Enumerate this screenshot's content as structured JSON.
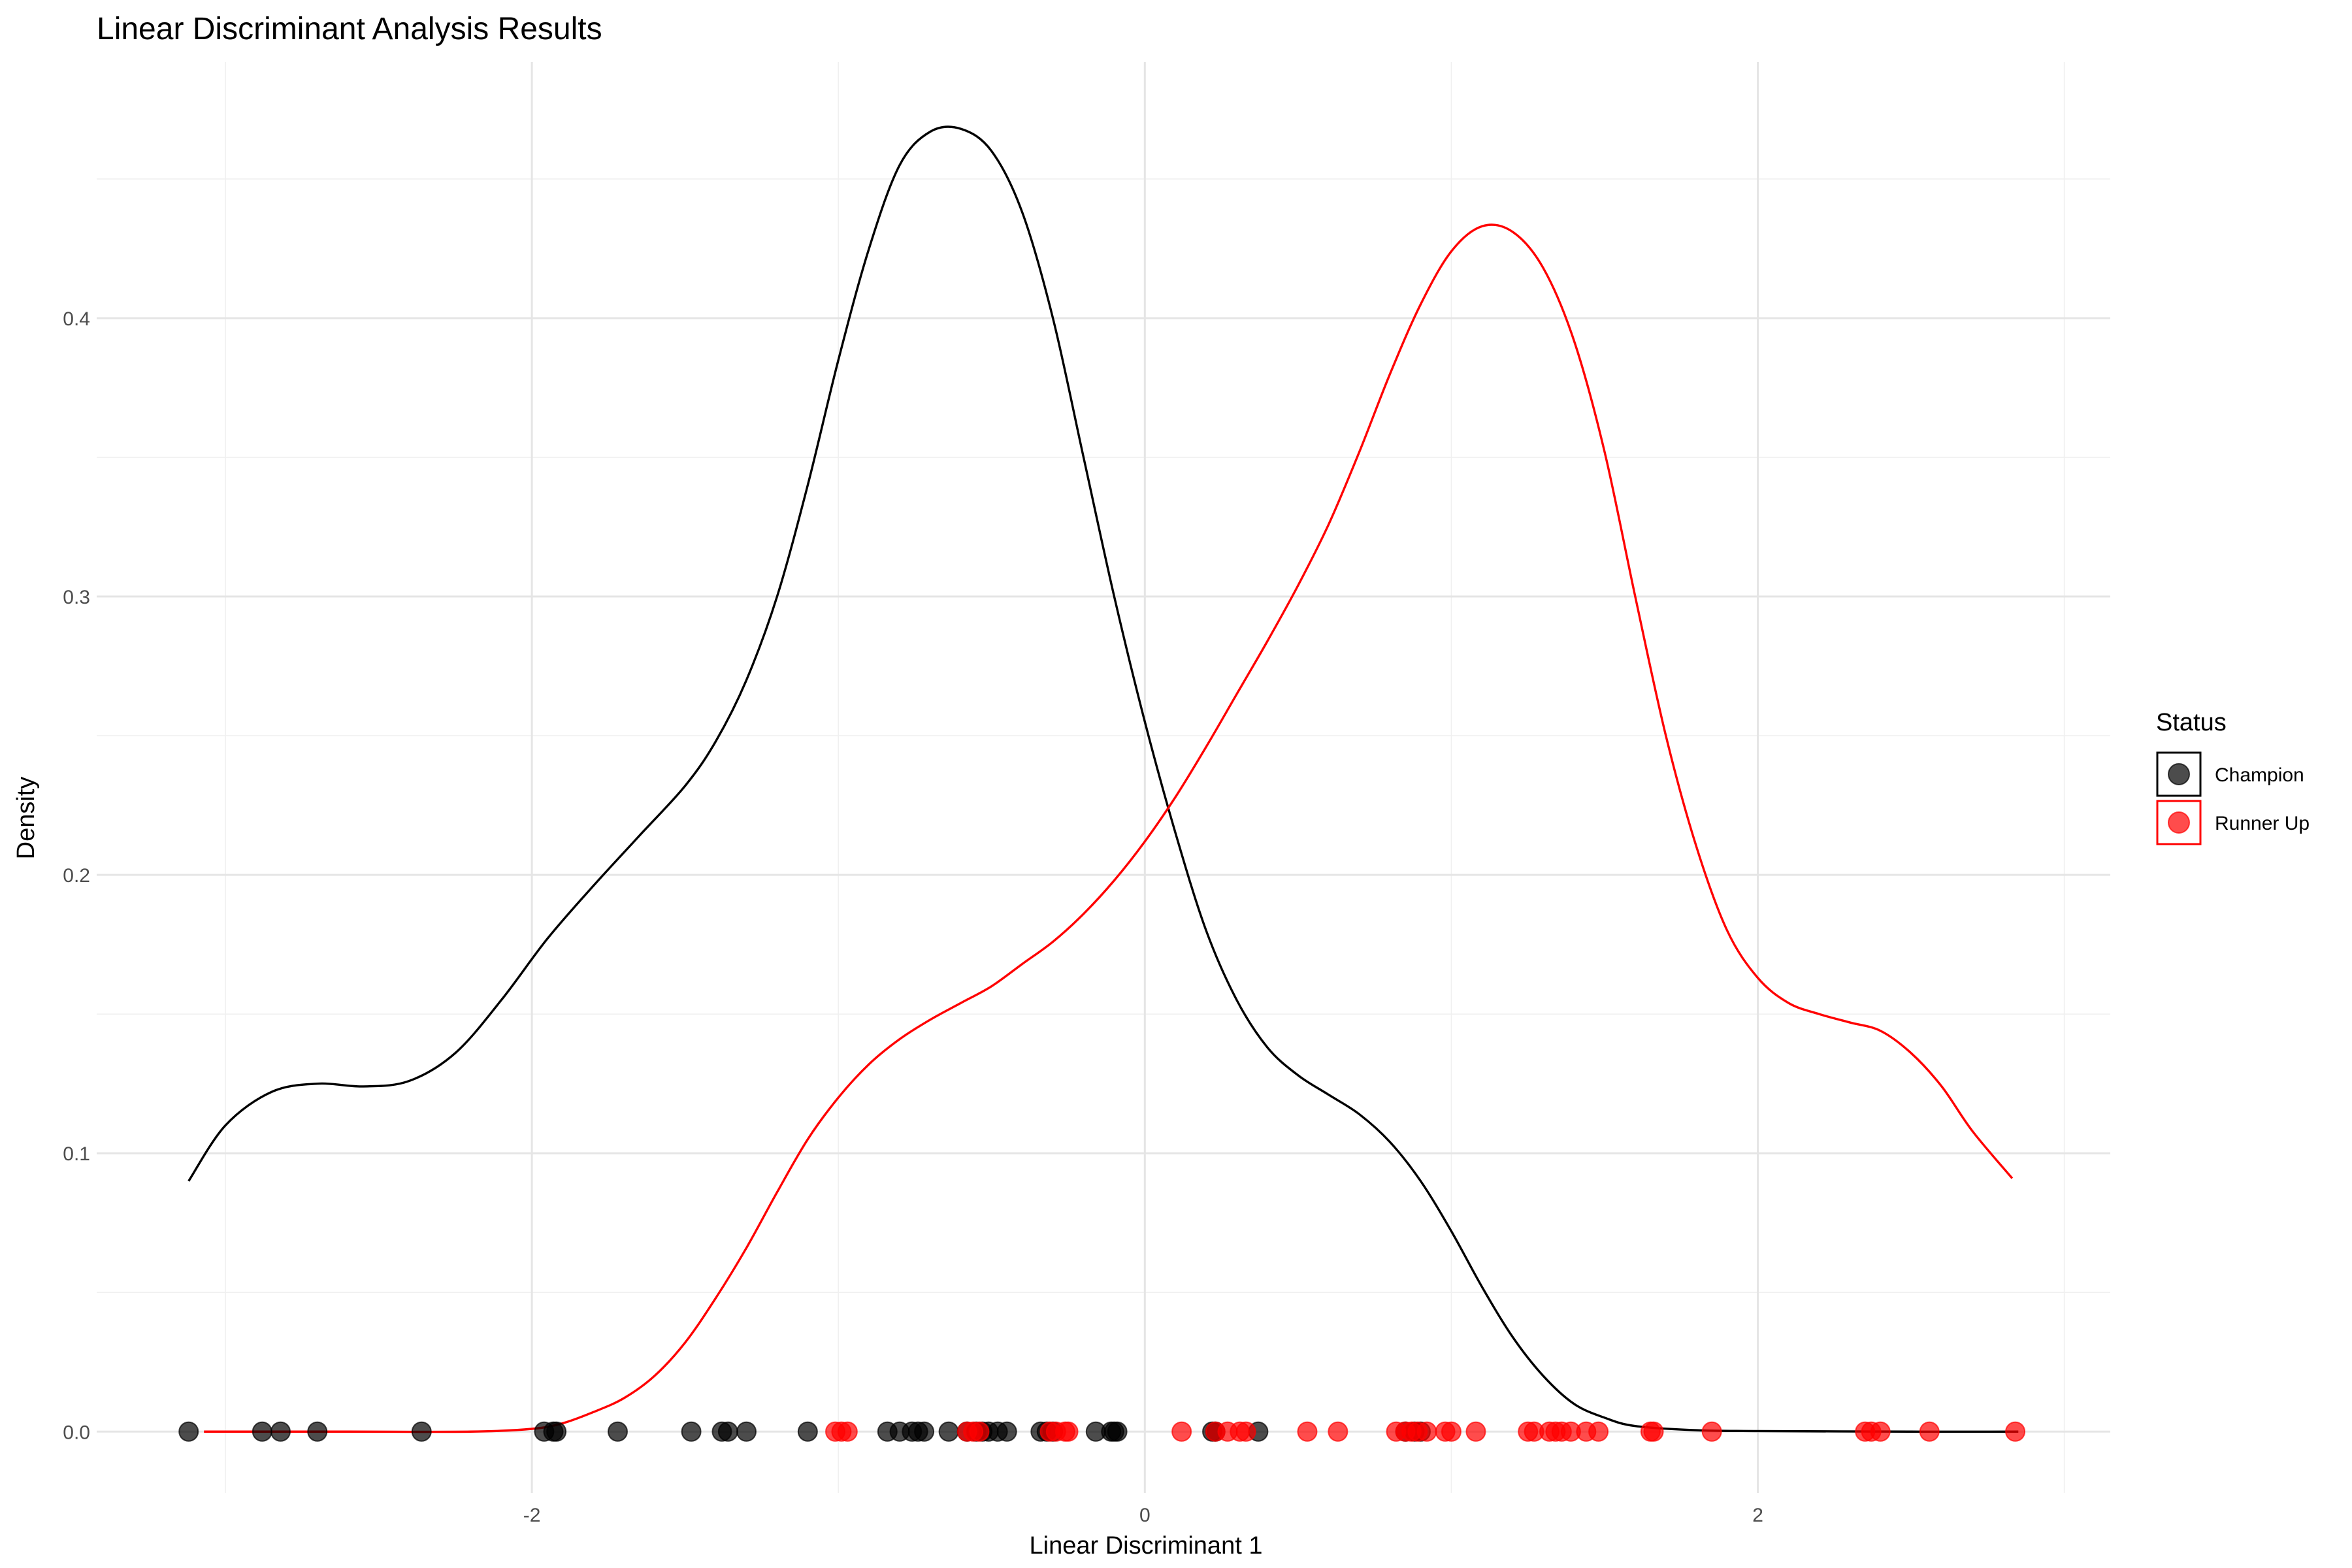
{
  "chart_data": {
    "type": "density",
    "title": "Linear Discriminant Analysis Results",
    "xlabel": "Linear Discriminant 1",
    "ylabel": "Density",
    "xlim": [
      -3.42,
      3.15
    ],
    "ylim": [
      -0.022,
      0.492
    ],
    "x_ticks": [
      -2,
      0,
      2
    ],
    "y_ticks": [
      0.0,
      0.1,
      0.2,
      0.3,
      0.4
    ],
    "x_tick_labels": [
      "-2",
      "0",
      "2"
    ],
    "y_tick_labels": [
      "0.0",
      "0.1",
      "0.2",
      "0.3",
      "0.4"
    ],
    "legend": {
      "title": "Status",
      "position": "right"
    },
    "series": [
      {
        "name": "Champion",
        "color": "#000000",
        "curve": [
          [
            -3.12,
            0.09
          ],
          [
            -3.0,
            0.11
          ],
          [
            -2.85,
            0.122
          ],
          [
            -2.7,
            0.125
          ],
          [
            -2.55,
            0.124
          ],
          [
            -2.4,
            0.126
          ],
          [
            -2.25,
            0.136
          ],
          [
            -2.1,
            0.155
          ],
          [
            -1.95,
            0.177
          ],
          [
            -1.8,
            0.196
          ],
          [
            -1.65,
            0.214
          ],
          [
            -1.5,
            0.232
          ],
          [
            -1.4,
            0.248
          ],
          [
            -1.3,
            0.27
          ],
          [
            -1.2,
            0.3
          ],
          [
            -1.1,
            0.34
          ],
          [
            -1.0,
            0.385
          ],
          [
            -0.9,
            0.425
          ],
          [
            -0.8,
            0.455
          ],
          [
            -0.7,
            0.467
          ],
          [
            -0.6,
            0.468
          ],
          [
            -0.5,
            0.46
          ],
          [
            -0.4,
            0.438
          ],
          [
            -0.3,
            0.4
          ],
          [
            -0.2,
            0.35
          ],
          [
            -0.1,
            0.3
          ],
          [
            0.0,
            0.255
          ],
          [
            0.1,
            0.215
          ],
          [
            0.2,
            0.18
          ],
          [
            0.3,
            0.155
          ],
          [
            0.4,
            0.138
          ],
          [
            0.5,
            0.128
          ],
          [
            0.6,
            0.121
          ],
          [
            0.7,
            0.114
          ],
          [
            0.8,
            0.104
          ],
          [
            0.9,
            0.09
          ],
          [
            1.0,
            0.072
          ],
          [
            1.1,
            0.052
          ],
          [
            1.2,
            0.034
          ],
          [
            1.3,
            0.02
          ],
          [
            1.4,
            0.01
          ],
          [
            1.5,
            0.005
          ],
          [
            1.6,
            0.002
          ],
          [
            1.8,
            0.0005
          ],
          [
            2.0,
            0.0002
          ],
          [
            2.5,
            0.0
          ],
          [
            2.85,
            0.0
          ]
        ],
        "points": [
          -3.12,
          -2.88,
          -2.82,
          -2.7,
          -2.36,
          -1.96,
          -1.93,
          -1.92,
          -1.72,
          -1.48,
          -1.38,
          -1.36,
          -1.3,
          -1.1,
          -0.84,
          -0.8,
          -0.76,
          -0.74,
          -0.72,
          -0.64,
          -0.58,
          -0.55,
          -0.53,
          -0.51,
          -0.48,
          -0.45,
          -0.34,
          -0.32,
          -0.3,
          -0.16,
          -0.11,
          -0.1,
          -0.09,
          0.22,
          0.23,
          0.37,
          0.85,
          0.88,
          0.9
        ]
      },
      {
        "name": "Runner Up",
        "color": "#ff0000",
        "curve": [
          [
            -3.07,
            0.0
          ],
          [
            -2.6,
            0.0
          ],
          [
            -2.2,
            0.0
          ],
          [
            -2.0,
            0.001
          ],
          [
            -1.9,
            0.003
          ],
          [
            -1.8,
            0.007
          ],
          [
            -1.7,
            0.012
          ],
          [
            -1.6,
            0.02
          ],
          [
            -1.5,
            0.032
          ],
          [
            -1.4,
            0.048
          ],
          [
            -1.3,
            0.066
          ],
          [
            -1.2,
            0.086
          ],
          [
            -1.1,
            0.105
          ],
          [
            -1.0,
            0.12
          ],
          [
            -0.9,
            0.132
          ],
          [
            -0.8,
            0.141
          ],
          [
            -0.7,
            0.148
          ],
          [
            -0.6,
            0.154
          ],
          [
            -0.5,
            0.16
          ],
          [
            -0.4,
            0.168
          ],
          [
            -0.3,
            0.176
          ],
          [
            -0.2,
            0.186
          ],
          [
            -0.1,
            0.198
          ],
          [
            0.0,
            0.212
          ],
          [
            0.1,
            0.228
          ],
          [
            0.2,
            0.246
          ],
          [
            0.3,
            0.265
          ],
          [
            0.4,
            0.284
          ],
          [
            0.5,
            0.304
          ],
          [
            0.6,
            0.326
          ],
          [
            0.7,
            0.352
          ],
          [
            0.8,
            0.38
          ],
          [
            0.9,
            0.405
          ],
          [
            1.0,
            0.424
          ],
          [
            1.1,
            0.433
          ],
          [
            1.2,
            0.431
          ],
          [
            1.3,
            0.418
          ],
          [
            1.4,
            0.392
          ],
          [
            1.5,
            0.352
          ],
          [
            1.6,
            0.3
          ],
          [
            1.7,
            0.25
          ],
          [
            1.8,
            0.21
          ],
          [
            1.9,
            0.18
          ],
          [
            2.0,
            0.163
          ],
          [
            2.1,
            0.154
          ],
          [
            2.2,
            0.15
          ],
          [
            2.3,
            0.147
          ],
          [
            2.4,
            0.144
          ],
          [
            2.5,
            0.136
          ],
          [
            2.6,
            0.124
          ],
          [
            2.7,
            0.108
          ],
          [
            2.83,
            0.091
          ]
        ],
        "points": [
          -1.01,
          -0.99,
          -0.97,
          -0.58,
          -0.56,
          -0.54,
          -0.31,
          -0.29,
          -0.26,
          -0.25,
          0.12,
          0.23,
          0.27,
          0.31,
          0.33,
          0.53,
          0.63,
          0.82,
          0.85,
          0.87,
          0.89,
          0.92,
          0.98,
          1.0,
          1.08,
          1.25,
          1.27,
          1.32,
          1.34,
          1.36,
          1.39,
          1.44,
          1.48,
          1.65,
          1.66,
          1.85,
          2.35,
          2.37,
          2.4,
          2.56,
          2.84
        ]
      }
    ]
  }
}
